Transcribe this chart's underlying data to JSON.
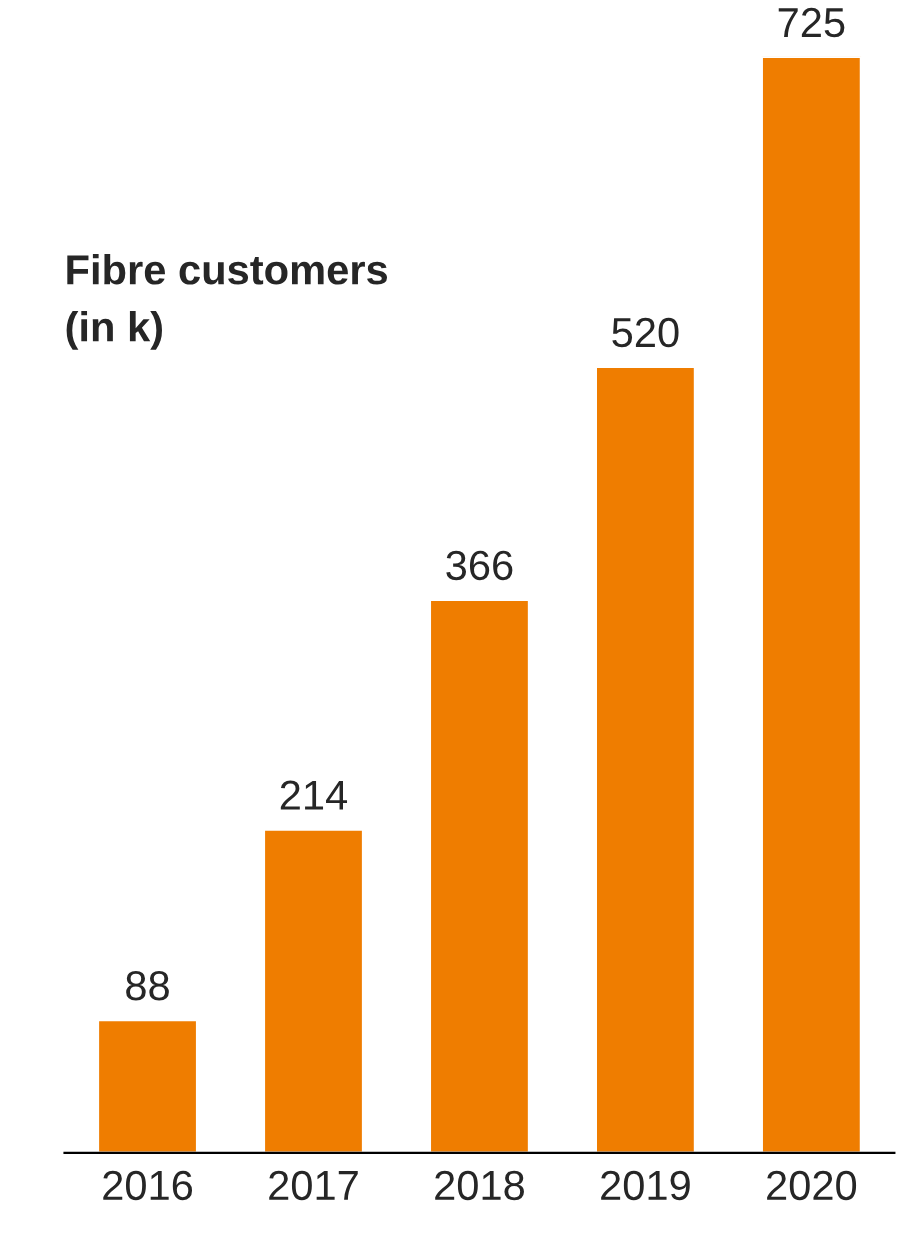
{
  "chart_data": {
    "type": "bar",
    "title": "Fibre customers\n(in k)",
    "categories": [
      "2016",
      "2017",
      "2018",
      "2019",
      "2020"
    ],
    "values": [
      88,
      214,
      366,
      520,
      725
    ],
    "color": "#ef7d00",
    "data_labels": true,
    "tick_labels": "x",
    "grid": false,
    "legend": false
  }
}
